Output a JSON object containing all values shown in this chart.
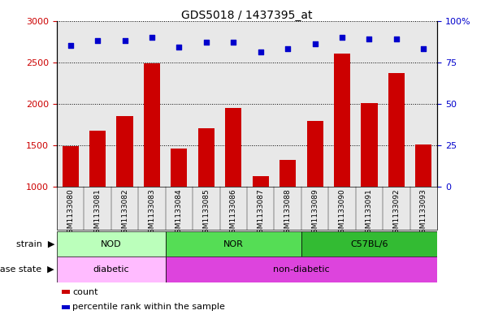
{
  "title": "GDS5018 / 1437395_at",
  "samples": [
    "GSM1133080",
    "GSM1133081",
    "GSM1133082",
    "GSM1133083",
    "GSM1133084",
    "GSM1133085",
    "GSM1133086",
    "GSM1133087",
    "GSM1133088",
    "GSM1133089",
    "GSM1133090",
    "GSM1133091",
    "GSM1133092",
    "GSM1133093"
  ],
  "counts": [
    1490,
    1670,
    1850,
    2490,
    1460,
    1700,
    1950,
    1130,
    1320,
    1790,
    2600,
    2010,
    2370,
    1510
  ],
  "percentiles": [
    85,
    88,
    88,
    90,
    84,
    87,
    87,
    81,
    83,
    86,
    90,
    89,
    89,
    83
  ],
  "ylim_left": [
    1000,
    3000
  ],
  "ylim_right": [
    0,
    100
  ],
  "yticks_left": [
    1000,
    1500,
    2000,
    2500,
    3000
  ],
  "yticks_right": [
    0,
    25,
    50,
    75,
    100
  ],
  "bar_color": "#cc0000",
  "scatter_color": "#0000cc",
  "strain_groups": [
    {
      "label": "NOD",
      "start": 0,
      "end": 3,
      "color": "#bbffbb"
    },
    {
      "label": "NOR",
      "start": 4,
      "end": 8,
      "color": "#55dd55"
    },
    {
      "label": "C57BL/6",
      "start": 9,
      "end": 13,
      "color": "#33bb33"
    }
  ],
  "disease_groups": [
    {
      "label": "diabetic",
      "start": 0,
      "end": 3,
      "color": "#ffbbff"
    },
    {
      "label": "non-diabetic",
      "start": 4,
      "end": 13,
      "color": "#dd44dd"
    }
  ],
  "legend_items": [
    {
      "label": "count",
      "color": "#cc0000"
    },
    {
      "label": "percentile rank within the sample",
      "color": "#0000cc"
    }
  ],
  "bg_color": "#d8d8d8",
  "plot_bg": "#e8e8e8"
}
